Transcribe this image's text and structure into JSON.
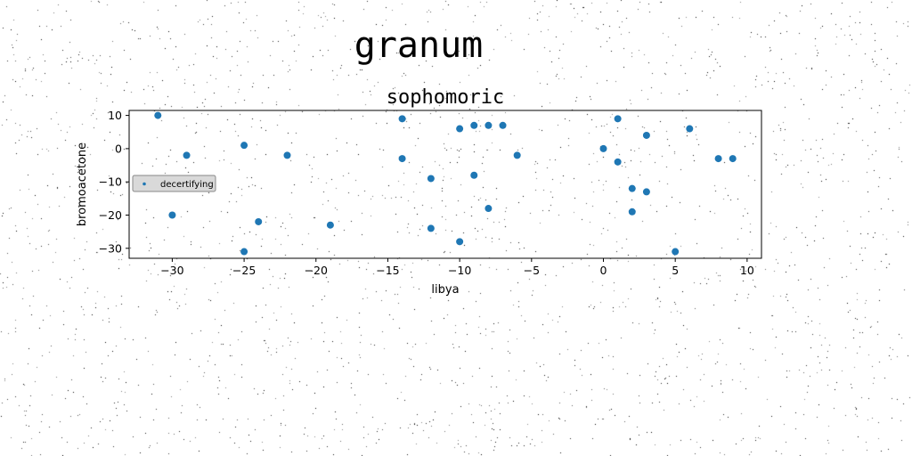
{
  "page": {
    "title": "granum"
  },
  "chart_data": {
    "type": "scatter",
    "title": "sophomoric",
    "xlabel": "libya",
    "ylabel": "bromoacetone",
    "xlim": [
      -33,
      11
    ],
    "ylim": [
      -33,
      11.5
    ],
    "xticks": [
      -30,
      -25,
      -20,
      -15,
      -10,
      -5,
      0,
      5,
      10
    ],
    "yticks": [
      -30,
      -20,
      -10,
      0,
      10
    ],
    "grid": false,
    "legend_position": "center-left",
    "series": [
      {
        "name": "decertifying",
        "color": "#1f77b4",
        "x": [
          -31,
          -30,
          -29,
          -25,
          -25,
          -24,
          -22,
          -19,
          -14,
          -14,
          -12,
          -12,
          -10,
          -10,
          -9,
          -9,
          -8,
          -8,
          -7,
          -6,
          0,
          1,
          1,
          2,
          2,
          3,
          3,
          5,
          6,
          8,
          9
        ],
        "y": [
          10,
          -20,
          -2,
          1,
          -31,
          -22,
          -2,
          -23,
          9,
          -3,
          -9,
          -24,
          6,
          -28,
          7,
          -8,
          7,
          -18,
          7,
          -2,
          0,
          9,
          -4,
          -12,
          -19,
          4,
          -13,
          -31,
          6,
          -3,
          -3
        ]
      }
    ]
  }
}
